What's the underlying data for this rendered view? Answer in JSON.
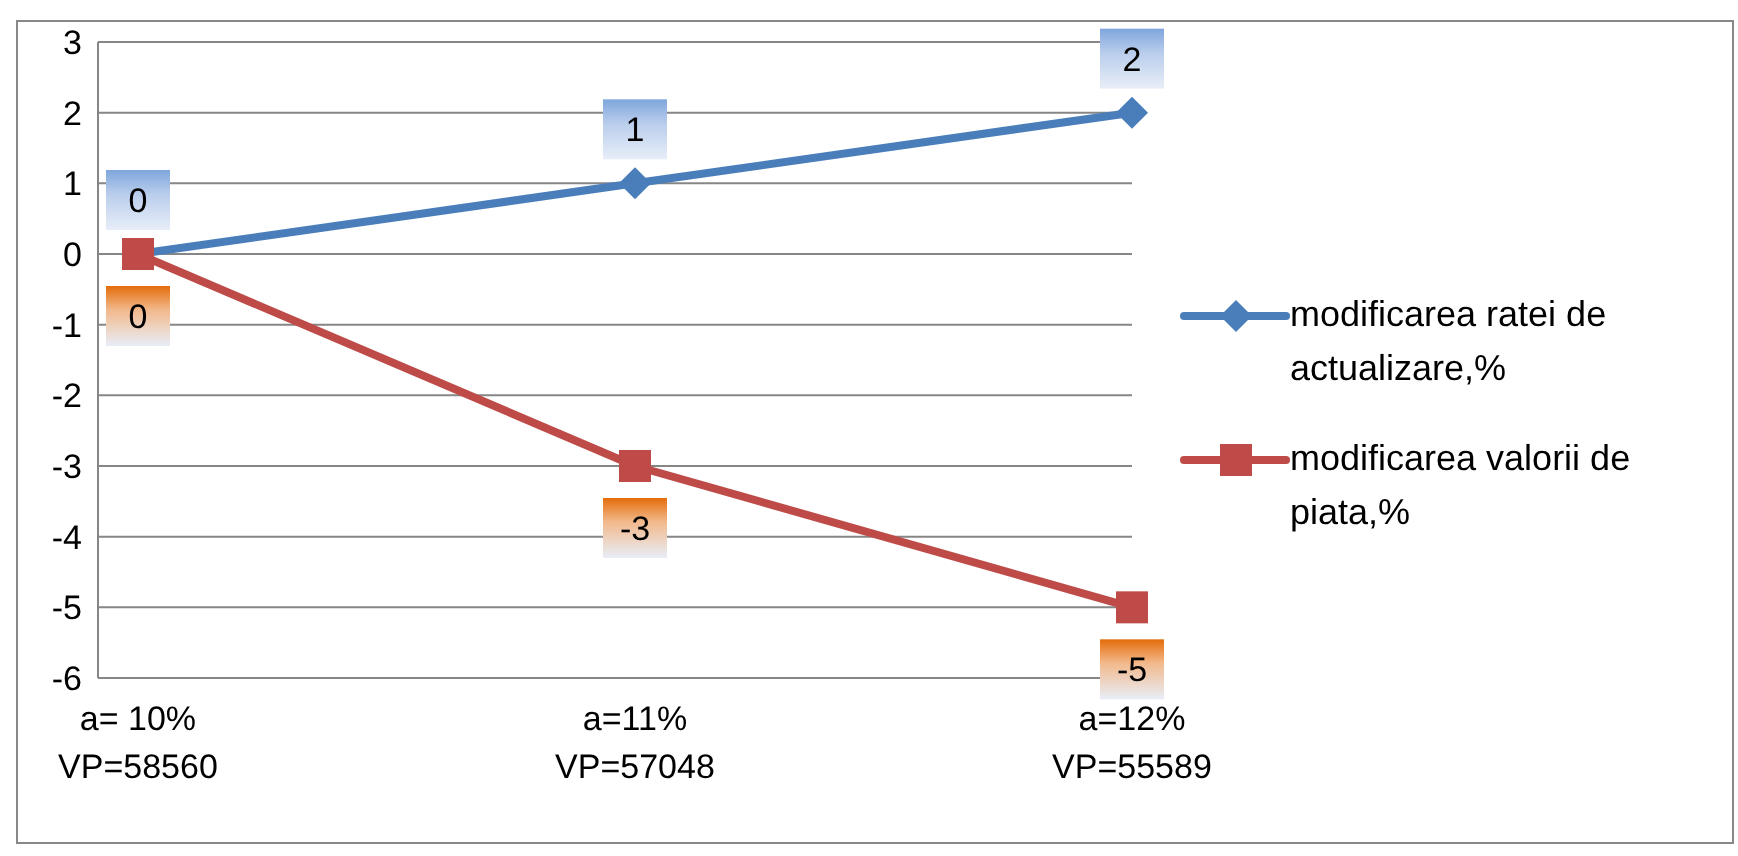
{
  "chart_data": {
    "type": "line",
    "categories": [
      "a= 10%\nVP=58560",
      "a=11%\nVP=57048",
      "a=12%\nVP=55589"
    ],
    "series": [
      {
        "name": "modificarea ratei de actualizare,%",
        "color": "#4a7ebb",
        "marker": "diamond",
        "values": [
          0,
          1,
          2
        ]
      },
      {
        "name": "modificarea valorii de piata,%",
        "color": "#be4b48",
        "marker": "square",
        "values": [
          0,
          -3,
          -5
        ]
      }
    ],
    "ylim": [
      -6,
      3
    ],
    "yticks": [
      -6,
      -5,
      -4,
      -3,
      -2,
      -1,
      0,
      1,
      2,
      3
    ],
    "grid": "y",
    "legend": "right",
    "data_labels": true
  }
}
